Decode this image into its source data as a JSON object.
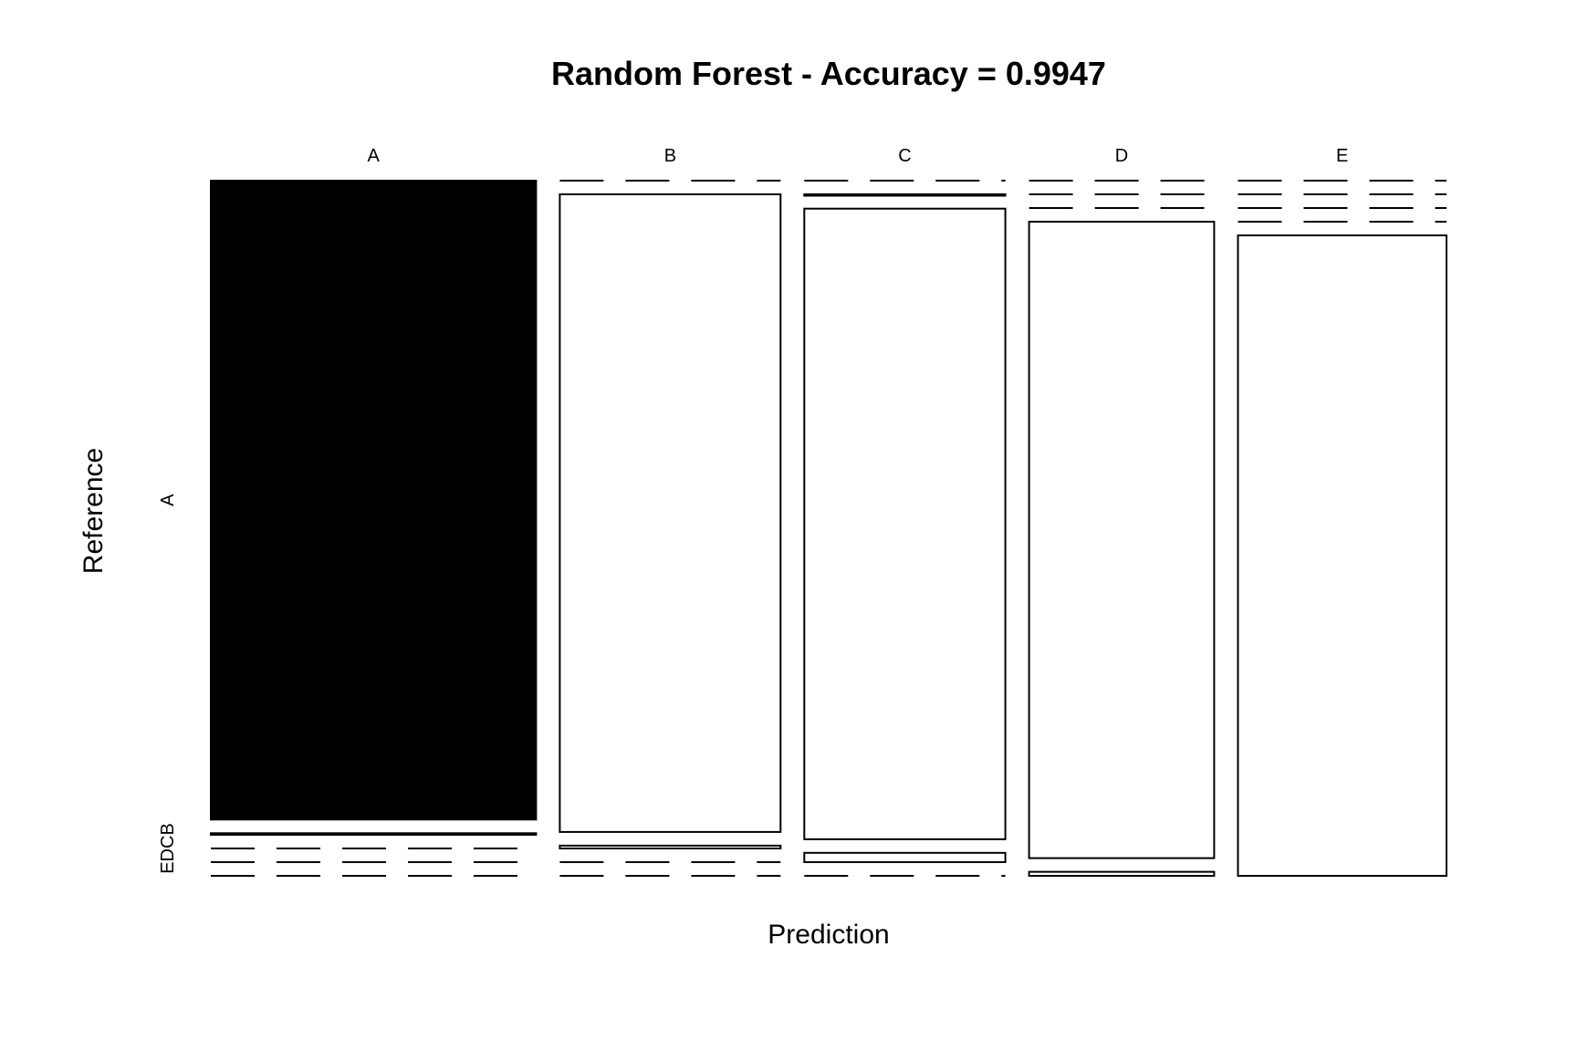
{
  "chart_data": {
    "type": "mosaic",
    "title": "Random Forest - Accuracy = 0.9947",
    "xlabel": "Prediction",
    "ylabel": "Reference",
    "categories": [
      "A",
      "B",
      "C",
      "D",
      "E"
    ],
    "row_categories": [
      "A",
      "B",
      "C",
      "D",
      "E"
    ],
    "y_tick_labels": [
      "A",
      "EDCB"
    ],
    "matrix": [
      [
        1674,
        0,
        0,
        0,
        0
      ],
      [
        4,
        1134,
        1,
        0,
        0
      ],
      [
        0,
        5,
        1021,
        0,
        0
      ],
      [
        0,
        0,
        15,
        949,
        0
      ],
      [
        0,
        0,
        0,
        6,
        1076
      ]
    ],
    "colors": {
      "A": "#000000",
      "B": "#ffffff",
      "C": "#ffffff",
      "D": "#ffffff",
      "E": "#ffffff"
    }
  }
}
